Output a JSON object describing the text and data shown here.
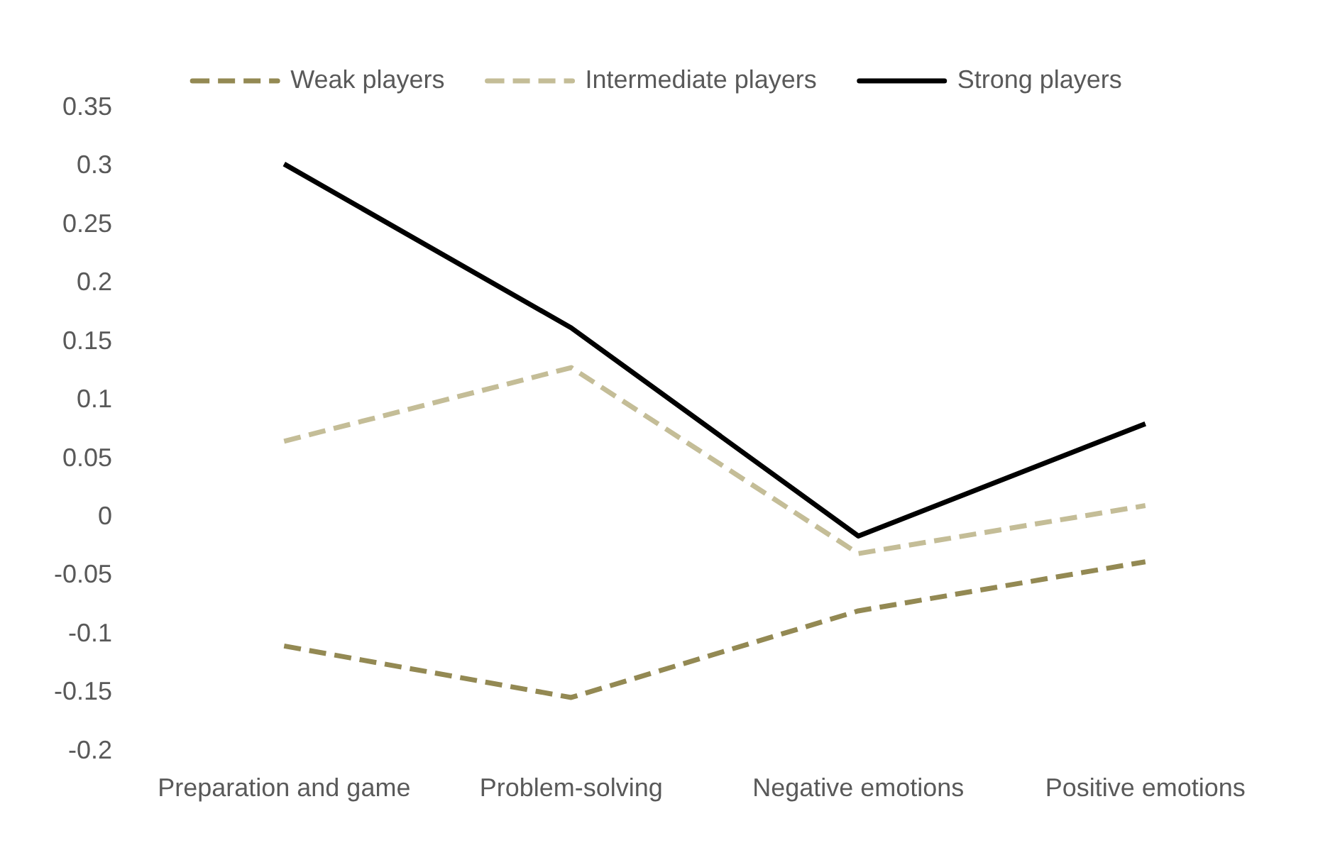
{
  "chart_data": {
    "type": "line",
    "categories": [
      "Preparation and game",
      "Problem-solving",
      "Negative emotions",
      "Positive emotions"
    ],
    "series": [
      {
        "name": "Weak players",
        "color": "#938953",
        "line_style": "dashed",
        "values": [
          -0.11,
          -0.154,
          -0.08,
          -0.038
        ]
      },
      {
        "name": "Intermediate players",
        "color": "#c4bd97",
        "line_style": "dashed",
        "values": [
          0.065,
          0.128,
          -0.031,
          0.01
        ]
      },
      {
        "name": "Strong players",
        "color": "#000000",
        "line_style": "solid",
        "values": [
          0.302,
          0.162,
          -0.016,
          0.08
        ]
      }
    ],
    "ylim": [
      -0.2,
      0.35
    ],
    "yticks": [
      -0.2,
      -0.15,
      -0.1,
      -0.05,
      0,
      0.05,
      0.1,
      0.15,
      0.2,
      0.25,
      0.3,
      0.35
    ],
    "grid": false,
    "legend": "top",
    "marker": "none"
  }
}
